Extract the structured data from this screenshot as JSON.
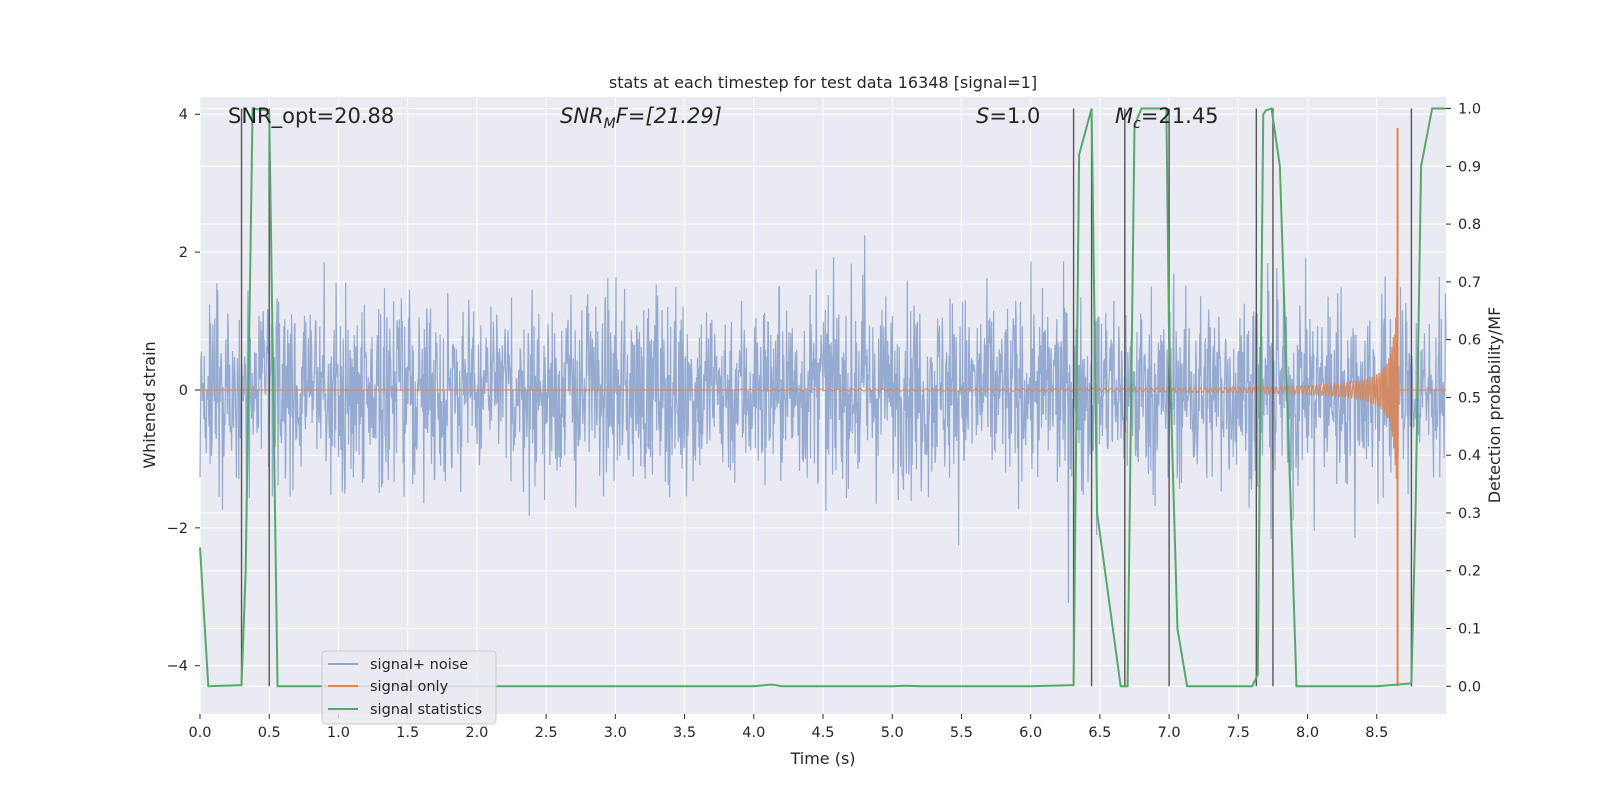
{
  "chart_data": {
    "type": "line",
    "title": "stats at each timestep for test data 16348 [signal=1]",
    "xlabel": "Time (s)",
    "ylabel_left": "Whitened strain",
    "ylabel_right": "Detection probability/MF",
    "xlim": [
      0.0,
      9.0
    ],
    "ylim_left": [
      -4.7,
      4.25
    ],
    "ylim_right": [
      -0.048,
      1.02
    ],
    "xticks": [
      "0.0",
      "0.5",
      "1.0",
      "1.5",
      "2.0",
      "2.5",
      "3.0",
      "3.5",
      "4.0",
      "4.5",
      "5.0",
      "5.5",
      "6.0",
      "6.5",
      "7.0",
      "7.5",
      "8.0",
      "8.5"
    ],
    "xtick_values": [
      0.0,
      0.5,
      1.0,
      1.5,
      2.0,
      2.5,
      3.0,
      3.5,
      4.0,
      4.5,
      5.0,
      5.5,
      6.0,
      6.5,
      7.0,
      7.5,
      8.0,
      8.5
    ],
    "yticks_left": [
      "4",
      "2",
      "0",
      "−2",
      "−4"
    ],
    "ytick_values_left": [
      4,
      2,
      0,
      -2,
      -4
    ],
    "yticks_right": [
      "1.0",
      "0.9",
      "0.8",
      "0.7",
      "0.6",
      "0.5",
      "0.4",
      "0.3",
      "0.2",
      "0.1",
      "0.0"
    ],
    "ytick_values_right": [
      1.0,
      0.9,
      0.8,
      0.7,
      0.6,
      0.5,
      0.4,
      0.3,
      0.2,
      0.1,
      0.0
    ],
    "annotations": {
      "snr_opt": "SNR_opt=20.88",
      "snr_mf_main": "SNR",
      "snr_mf_sub": "M",
      "snr_mf_rest": "F=[21.29]",
      "s_var": "S",
      "s_rest": "=1.0",
      "mc_var": "M",
      "mc_sub": "c",
      "mc_rest": "=21.45"
    },
    "legend": [
      "signal+ noise",
      "signal only",
      "signal statistics"
    ],
    "colors": {
      "signal_noise": "#8fa6cf",
      "signal_only": "#dd8452",
      "statistics": "#55a868",
      "vlines": "#555555",
      "plot_bg": "#eaeaf2",
      "grid": "#ffffff"
    },
    "series": [
      {
        "name": "signal statistics",
        "axis": "right",
        "x": [
          0.0,
          0.06,
          0.3,
          0.33,
          0.38,
          0.48,
          0.5,
          0.56,
          1.0,
          2.0,
          3.0,
          4.0,
          4.13,
          4.2,
          5.0,
          5.1,
          5.2,
          6.0,
          6.31,
          6.35,
          6.44,
          6.48,
          6.65,
          6.7,
          6.75,
          6.8,
          6.98,
          7.0,
          7.06,
          7.13,
          7.6,
          7.64,
          7.68,
          7.7,
          7.74,
          7.8,
          7.92,
          8.0,
          8.5,
          8.75,
          8.78,
          8.82,
          8.9,
          9.0
        ],
        "y": [
          0.24,
          0.0,
          0.002,
          0.2,
          1.0,
          0.997,
          0.995,
          0.0,
          0.0,
          0.0,
          0.0,
          0.0,
          0.003,
          0.0,
          0.0,
          0.001,
          0.0,
          0.0,
          0.002,
          0.92,
          1.0,
          0.3,
          0.0,
          0.0,
          0.97,
          1.0,
          1.0,
          0.6,
          0.1,
          0.0,
          0.0,
          0.02,
          0.99,
          0.997,
          1.0,
          0.9,
          0.0,
          0.0,
          0.0,
          0.005,
          0.3,
          0.9,
          1.0,
          1.0
        ]
      },
      {
        "name": "signal only",
        "axis": "left",
        "description": "chirp: amplitude ~0 before 4.0 s, growing to ~3.8 at merger near 8.65 s, then 0",
        "merger_time": 8.65,
        "peak_amplitude": 3.8
      },
      {
        "name": "signal+ noise",
        "axis": "left",
        "description": "whitened noise with approximate envelope +-2 and spikes to about +-3.3"
      }
    ],
    "vlines": [
      0.3,
      0.5,
      6.31,
      6.44,
      6.68,
      7.0,
      7.63,
      7.75,
      8.75
    ]
  }
}
